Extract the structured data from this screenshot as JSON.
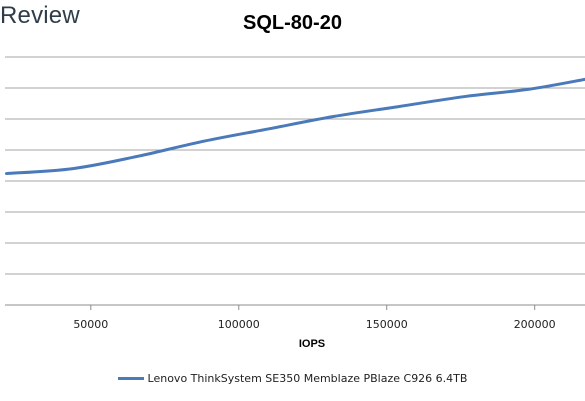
{
  "logo": {
    "text": "Review"
  },
  "chart_data": {
    "type": "line",
    "title": "SQL-80-20",
    "xlabel": "IOPS",
    "ylabel": "",
    "x_ticks": [
      50000,
      100000,
      150000,
      200000
    ],
    "x_tick_labels": [
      "50000",
      "100000",
      "150000",
      "200000"
    ],
    "xlim": [
      21000,
      217000
    ],
    "y_gridlines": 8,
    "grid": "horizontal",
    "legend_position": "bottom",
    "series": [
      {
        "name": "Lenovo ThinkSystem SE350 Memblaze PBlaze C926 6.4TB",
        "color": "#4a7ab9",
        "x": [
          21500,
          44000,
          66000,
          88000,
          110000,
          132000,
          154000,
          176000,
          198000,
          217000
        ],
        "y": [
          0.53,
          0.55,
          0.6,
          0.66,
          0.71,
          0.76,
          0.8,
          0.84,
          0.87,
          0.91
        ]
      }
    ]
  }
}
